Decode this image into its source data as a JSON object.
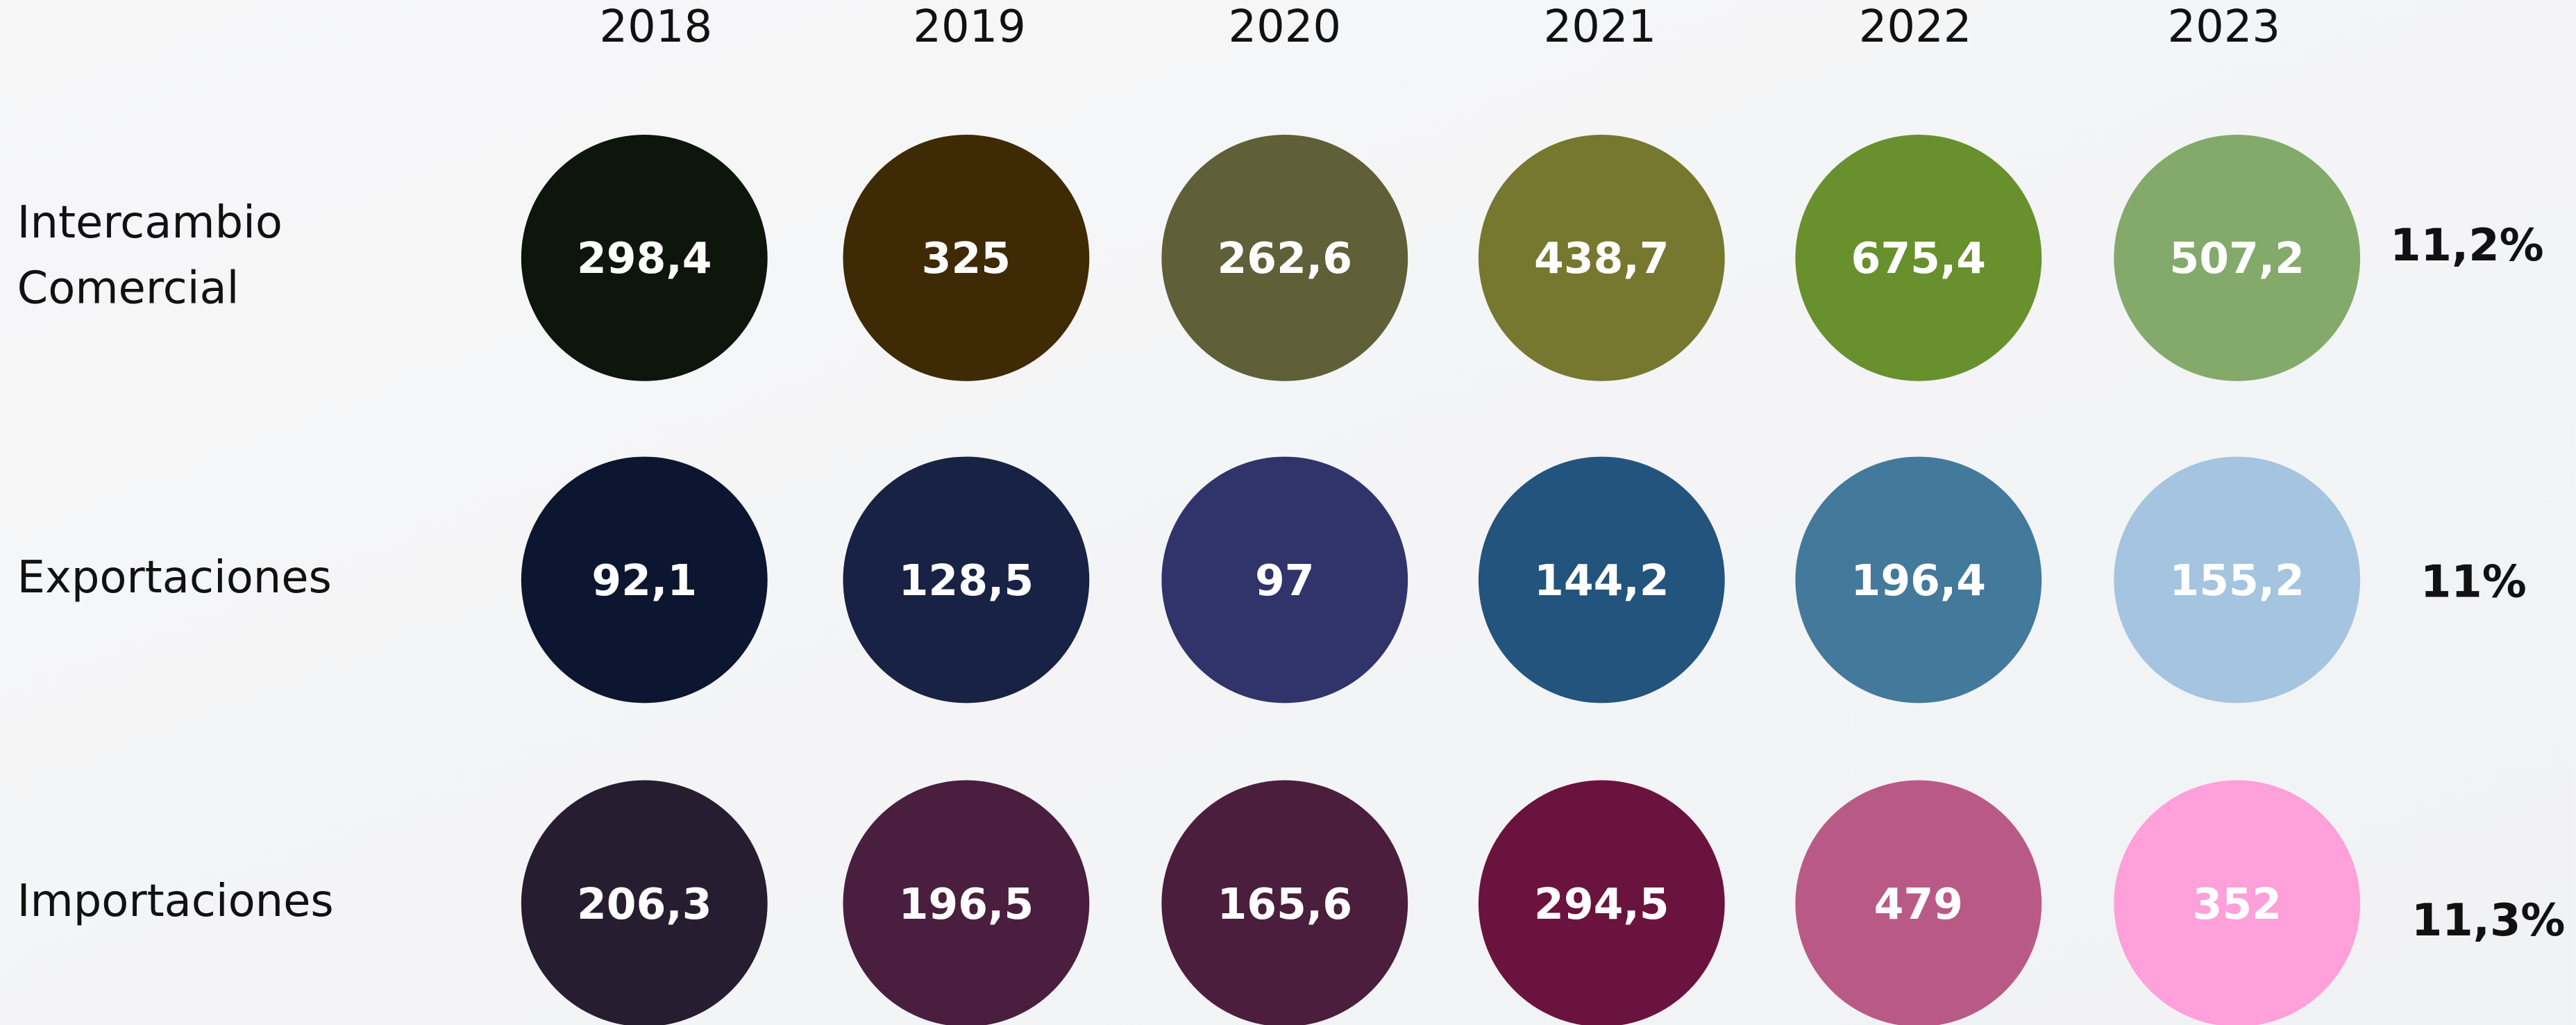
{
  "header": {
    "years": [
      "2018",
      "2019",
      "2020",
      "2021",
      "2022",
      "2023"
    ]
  },
  "rows": [
    {
      "label": [
        "Intercambio",
        "Comercial"
      ],
      "values": [
        "298,4",
        "325",
        "262,6",
        "438,7",
        "675,4",
        "507,2"
      ],
      "growth": "11,2%",
      "colors": [
        "#0d150d",
        "#3f2a06",
        "#5f5f38",
        "#77782f",
        "#68902c",
        "#83aa6b"
      ]
    },
    {
      "label": [
        "Exportaciones"
      ],
      "values": [
        "92,1",
        "128,5",
        "97",
        "144,2",
        "196,4",
        "155,2"
      ],
      "growth": "11%",
      "colors": [
        "#0c1630",
        "#172244",
        "#31336b",
        "#22547d",
        "#43799b",
        "#a4c4e0"
      ]
    },
    {
      "label": [
        "Importaciones"
      ],
      "values": [
        "206,3",
        "196,5",
        "165,6",
        "294,5",
        "479",
        "352"
      ],
      "growth": "11,3%",
      "colors": [
        "#261e30",
        "#4a1e3e",
        "#4a1e3c",
        "#6b133f",
        "#b95a86",
        "#fea0d9"
      ]
    }
  ]
}
